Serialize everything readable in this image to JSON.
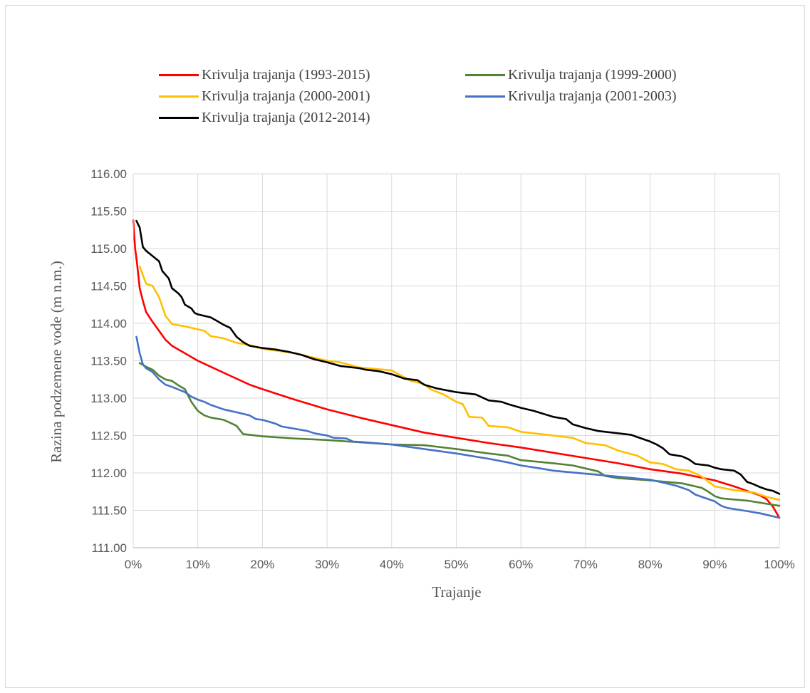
{
  "chart_data": {
    "type": "line",
    "title": "",
    "xlabel": "Trajanje",
    "ylabel": "Razina podzemene vode (m n.m.)",
    "xlim": [
      0,
      100
    ],
    "ylim": [
      111.0,
      116.0
    ],
    "x_ticks": [
      "0%",
      "10%",
      "20%",
      "30%",
      "40%",
      "50%",
      "60%",
      "70%",
      "80%",
      "90%",
      "100%"
    ],
    "y_ticks": [
      "116.00",
      "115.50",
      "115.00",
      "114.50",
      "114.00",
      "113.50",
      "113.00",
      "112.50",
      "112.00",
      "111.50",
      "111.00"
    ],
    "grid": true,
    "legend_position": "top",
    "series": [
      {
        "name": "Krivulja trajanja (1993-2015)",
        "color": "#ff0000",
        "points": [
          [
            0,
            115.38
          ],
          [
            0.3,
            115.0
          ],
          [
            0.6,
            114.8
          ],
          [
            1.0,
            114.47
          ],
          [
            1.5,
            114.3
          ],
          [
            2.0,
            114.15
          ],
          [
            3.0,
            114.02
          ],
          [
            4.0,
            113.9
          ],
          [
            5.0,
            113.78
          ],
          [
            6.0,
            113.7
          ],
          [
            8.0,
            113.6
          ],
          [
            10.0,
            113.5
          ],
          [
            12.0,
            113.42
          ],
          [
            15.0,
            113.3
          ],
          [
            18.0,
            113.18
          ],
          [
            20.0,
            113.12
          ],
          [
            25.0,
            112.98
          ],
          [
            30.0,
            112.85
          ],
          [
            35.0,
            112.74
          ],
          [
            40.0,
            112.64
          ],
          [
            45.0,
            112.54
          ],
          [
            50.0,
            112.47
          ],
          [
            55.0,
            112.4
          ],
          [
            60.0,
            112.34
          ],
          [
            65.0,
            112.27
          ],
          [
            70.0,
            112.2
          ],
          [
            75.0,
            112.13
          ],
          [
            80.0,
            112.05
          ],
          [
            85.0,
            111.99
          ],
          [
            90.0,
            111.9
          ],
          [
            93.0,
            111.82
          ],
          [
            95.0,
            111.76
          ],
          [
            97.0,
            111.7
          ],
          [
            98.0,
            111.65
          ],
          [
            99.0,
            111.55
          ],
          [
            100.0,
            111.4
          ]
        ]
      },
      {
        "name": "Krivulja trajanja (1999-2000)",
        "color": "#548235",
        "points": [
          [
            1.0,
            113.47
          ],
          [
            2.0,
            113.42
          ],
          [
            3.0,
            113.38
          ],
          [
            4.0,
            113.3
          ],
          [
            5.0,
            113.25
          ],
          [
            6.0,
            113.23
          ],
          [
            7.0,
            113.17
          ],
          [
            8.0,
            113.12
          ],
          [
            9.0,
            112.95
          ],
          [
            10.0,
            112.83
          ],
          [
            11.0,
            112.77
          ],
          [
            12.0,
            112.74
          ],
          [
            14.0,
            112.71
          ],
          [
            15.0,
            112.67
          ],
          [
            16.0,
            112.63
          ],
          [
            17.0,
            112.52
          ],
          [
            20.0,
            112.49
          ],
          [
            25.0,
            112.46
          ],
          [
            30.0,
            112.44
          ],
          [
            35.0,
            112.41
          ],
          [
            40.0,
            112.38
          ],
          [
            45.0,
            112.37
          ],
          [
            50.0,
            112.32
          ],
          [
            55.0,
            112.26
          ],
          [
            58.0,
            112.23
          ],
          [
            60.0,
            112.17
          ],
          [
            65.0,
            112.13
          ],
          [
            68.0,
            112.1
          ],
          [
            70.0,
            112.06
          ],
          [
            72.0,
            112.02
          ],
          [
            73.0,
            111.96
          ],
          [
            75.0,
            111.93
          ],
          [
            80.0,
            111.9
          ],
          [
            85.0,
            111.86
          ],
          [
            88.0,
            111.8
          ],
          [
            89.0,
            111.75
          ],
          [
            90.0,
            111.69
          ],
          [
            91.0,
            111.66
          ],
          [
            95.0,
            111.63
          ],
          [
            100.0,
            111.56
          ]
        ]
      },
      {
        "name": "Krivulja trajanja (2000-2001)",
        "color": "#ffc000",
        "points": [
          [
            1.0,
            114.76
          ],
          [
            2.0,
            114.53
          ],
          [
            3.0,
            114.5
          ],
          [
            4.0,
            114.35
          ],
          [
            5.0,
            114.1
          ],
          [
            6.0,
            113.99
          ],
          [
            8.0,
            113.96
          ],
          [
            10.0,
            113.92
          ],
          [
            11.0,
            113.9
          ],
          [
            12.0,
            113.83
          ],
          [
            14.0,
            113.8
          ],
          [
            16.0,
            113.74
          ],
          [
            18.0,
            113.71
          ],
          [
            20.0,
            113.66
          ],
          [
            25.0,
            113.6
          ],
          [
            30.0,
            113.5
          ],
          [
            32.0,
            113.48
          ],
          [
            35.0,
            113.41
          ],
          [
            40.0,
            113.37
          ],
          [
            43.0,
            113.23
          ],
          [
            45.0,
            113.19
          ],
          [
            46.0,
            113.12
          ],
          [
            48.0,
            113.05
          ],
          [
            50.0,
            112.95
          ],
          [
            51.0,
            112.92
          ],
          [
            52.0,
            112.75
          ],
          [
            54.0,
            112.74
          ],
          [
            55.0,
            112.63
          ],
          [
            58.0,
            112.61
          ],
          [
            60.0,
            112.55
          ],
          [
            63.0,
            112.52
          ],
          [
            68.0,
            112.47
          ],
          [
            70.0,
            112.4
          ],
          [
            72.0,
            112.38
          ],
          [
            73.0,
            112.37
          ],
          [
            75.0,
            112.3
          ],
          [
            78.0,
            112.23
          ],
          [
            80.0,
            112.14
          ],
          [
            82.0,
            112.12
          ],
          [
            84.0,
            112.05
          ],
          [
            86.0,
            112.03
          ],
          [
            88.0,
            111.95
          ],
          [
            90.0,
            111.82
          ],
          [
            93.0,
            111.77
          ],
          [
            96.0,
            111.74
          ],
          [
            98.0,
            111.68
          ],
          [
            100.0,
            111.64
          ]
        ]
      },
      {
        "name": "Krivulja trajanja (2001-2003)",
        "color": "#4472c4",
        "points": [
          [
            0.5,
            113.82
          ],
          [
            1.0,
            113.6
          ],
          [
            1.5,
            113.45
          ],
          [
            2.0,
            113.4
          ],
          [
            3.0,
            113.35
          ],
          [
            4.0,
            113.25
          ],
          [
            5.0,
            113.18
          ],
          [
            6.0,
            113.15
          ],
          [
            8.0,
            113.08
          ],
          [
            9.0,
            113.02
          ],
          [
            10.0,
            112.98
          ],
          [
            11.0,
            112.95
          ],
          [
            12.0,
            112.91
          ],
          [
            14.0,
            112.85
          ],
          [
            16.0,
            112.81
          ],
          [
            18.0,
            112.77
          ],
          [
            19.0,
            112.72
          ],
          [
            20.0,
            112.71
          ],
          [
            22.0,
            112.66
          ],
          [
            23.0,
            112.62
          ],
          [
            25.0,
            112.59
          ],
          [
            27.0,
            112.56
          ],
          [
            28.0,
            112.53
          ],
          [
            30.0,
            112.5
          ],
          [
            31.0,
            112.47
          ],
          [
            33.0,
            112.46
          ],
          [
            34.0,
            112.42
          ],
          [
            36.0,
            112.41
          ],
          [
            40.0,
            112.38
          ],
          [
            45.0,
            112.32
          ],
          [
            50.0,
            112.26
          ],
          [
            55.0,
            112.19
          ],
          [
            58.0,
            112.14
          ],
          [
            60.0,
            112.1
          ],
          [
            63.0,
            112.06
          ],
          [
            65.0,
            112.03
          ],
          [
            70.0,
            111.99
          ],
          [
            75.0,
            111.95
          ],
          [
            80.0,
            111.91
          ],
          [
            82.0,
            111.87
          ],
          [
            84.0,
            111.83
          ],
          [
            86.0,
            111.77
          ],
          [
            87.0,
            111.71
          ],
          [
            90.0,
            111.62
          ],
          [
            91.0,
            111.56
          ],
          [
            92.0,
            111.53
          ],
          [
            95.0,
            111.49
          ],
          [
            97.0,
            111.46
          ],
          [
            99.0,
            111.42
          ],
          [
            100.0,
            111.4
          ]
        ]
      },
      {
        "name": "Krivulja trajanja (2012-2014)",
        "color": "#000000",
        "points": [
          [
            0.5,
            115.37
          ],
          [
            1.0,
            115.28
          ],
          [
            1.5,
            115.02
          ],
          [
            2.0,
            114.97
          ],
          [
            3.0,
            114.9
          ],
          [
            4.0,
            114.83
          ],
          [
            4.5,
            114.7
          ],
          [
            5.0,
            114.65
          ],
          [
            5.5,
            114.6
          ],
          [
            6.0,
            114.47
          ],
          [
            7.0,
            114.4
          ],
          [
            7.5,
            114.35
          ],
          [
            8.0,
            114.25
          ],
          [
            9.0,
            114.2
          ],
          [
            9.5,
            114.14
          ],
          [
            10.0,
            114.12
          ],
          [
            12.0,
            114.08
          ],
          [
            13.0,
            114.03
          ],
          [
            14.0,
            113.98
          ],
          [
            15.0,
            113.94
          ],
          [
            16.0,
            113.82
          ],
          [
            17.0,
            113.75
          ],
          [
            18.0,
            113.7
          ],
          [
            20.0,
            113.67
          ],
          [
            22.0,
            113.65
          ],
          [
            24.0,
            113.62
          ],
          [
            26.0,
            113.58
          ],
          [
            28.0,
            113.52
          ],
          [
            30.0,
            113.48
          ],
          [
            32.0,
            113.43
          ],
          [
            35.0,
            113.4
          ],
          [
            36.0,
            113.38
          ],
          [
            38.0,
            113.36
          ],
          [
            40.0,
            113.32
          ],
          [
            42.0,
            113.26
          ],
          [
            44.0,
            113.24
          ],
          [
            45.0,
            113.18
          ],
          [
            47.0,
            113.13
          ],
          [
            50.0,
            113.08
          ],
          [
            53.0,
            113.05
          ],
          [
            55.0,
            112.97
          ],
          [
            57.0,
            112.95
          ],
          [
            58.0,
            112.92
          ],
          [
            60.0,
            112.87
          ],
          [
            62.0,
            112.83
          ],
          [
            65.0,
            112.75
          ],
          [
            67.0,
            112.72
          ],
          [
            68.0,
            112.65
          ],
          [
            70.0,
            112.6
          ],
          [
            72.0,
            112.56
          ],
          [
            75.0,
            112.53
          ],
          [
            77.0,
            112.51
          ],
          [
            78.0,
            112.48
          ],
          [
            80.0,
            112.42
          ],
          [
            81.0,
            112.38
          ],
          [
            82.0,
            112.33
          ],
          [
            83.0,
            112.25
          ],
          [
            85.0,
            112.22
          ],
          [
            86.0,
            112.18
          ],
          [
            87.0,
            112.12
          ],
          [
            89.0,
            112.1
          ],
          [
            90.0,
            112.07
          ],
          [
            91.0,
            112.05
          ],
          [
            93.0,
            112.03
          ],
          [
            94.0,
            111.98
          ],
          [
            95.0,
            111.88
          ],
          [
            96.0,
            111.85
          ],
          [
            97.0,
            111.81
          ],
          [
            98.0,
            111.78
          ],
          [
            99.0,
            111.76
          ],
          [
            100.0,
            111.72
          ]
        ]
      }
    ]
  }
}
